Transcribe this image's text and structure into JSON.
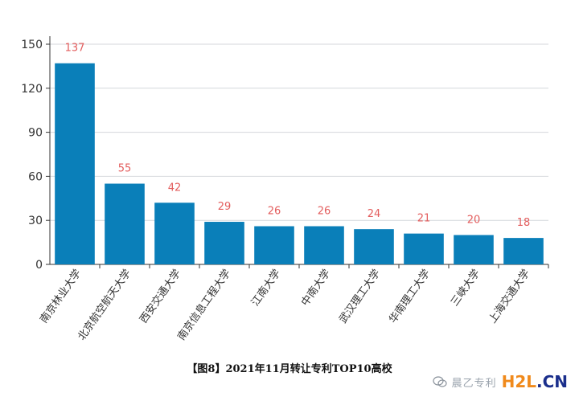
{
  "chart_data": {
    "type": "bar",
    "categories": [
      "南京林业大学",
      "北京航空航天大学",
      "西安交通大学",
      "南京信息工程大学",
      "江南大学",
      "中南大学",
      "武汉理工大学",
      "华南理工大学",
      "三峡大学",
      "上海交通大学"
    ],
    "values": [
      137,
      55,
      42,
      29,
      26,
      26,
      24,
      21,
      20,
      18
    ],
    "yticks": [
      0,
      30,
      60,
      90,
      120,
      150
    ],
    "ylim": [
      0,
      150
    ],
    "grid": true,
    "bar_color": "#0a7fb9",
    "label_color": "#e35d5d"
  },
  "caption": "【图8】2021年11月转让专利TOP10高校",
  "watermark": {
    "text": "晨乙专利",
    "logo_h2l": "H2L",
    "logo_cn": ".CN"
  }
}
